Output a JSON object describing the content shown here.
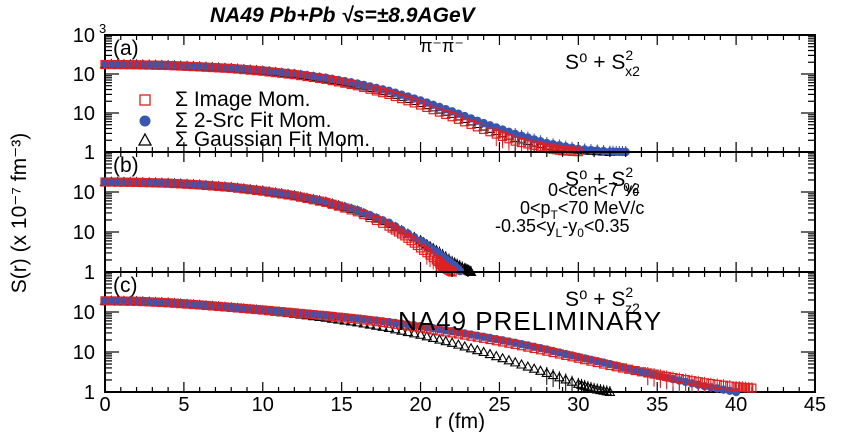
{
  "header": {
    "title": "NA49 Pb+Pb √s=±8.9AGeV",
    "particle_label": "π⁻π⁻",
    "y_axis_label": "S(r) (x 10⁻⁷ fm⁻³)",
    "x_axis_label": "r (fm)",
    "preliminary": "NA49 PRELIMINARY",
    "cuts": [
      "0<cen<7 %",
      "0<p_T<70 MeV/c",
      "-0.35<y_L-y_0<0.35"
    ]
  },
  "legend": [
    {
      "label": "Σ Image Mom.",
      "marker": "open-square",
      "color": "#e02020"
    },
    {
      "label": "Σ 2-Src Fit Mom.",
      "marker": "filled-circle",
      "color": "#3a55b0"
    },
    {
      "label": "Σ Gaussian Fit Mom.",
      "marker": "open-triangle",
      "color": "#000000"
    }
  ],
  "colors": {
    "image": "#e02020",
    "twosrc": "#3a55b0",
    "gauss": "#000000",
    "axis": "#000000"
  },
  "chart_data": [
    {
      "type": "scatter",
      "panel_label": "(a)",
      "component_label": {
        "base": "S⁰ + S",
        "sup": "2",
        "sub": "x2"
      },
      "xlim": [
        0,
        45
      ],
      "ylim": [
        1,
        1000
      ],
      "yscale": "log",
      "x_ticks": [
        "0",
        "5",
        "10",
        "15",
        "20",
        "25",
        "30",
        "35",
        "40",
        "45"
      ],
      "y_ticks": [
        {
          "v": 1,
          "t": "1"
        },
        {
          "v": 10,
          "t": "10"
        },
        {
          "v": 100,
          "t": "10"
        },
        {
          "v": 1000,
          "t": "10",
          "exp": "3"
        }
      ],
      "series": [
        {
          "name": "Σ Image Mom.",
          "marker": "open-square",
          "x": [
            0,
            2,
            4,
            6,
            8,
            10,
            12,
            14,
            16,
            18,
            20,
            22,
            24,
            26,
            28,
            29,
            30
          ],
          "y": [
            175,
            172,
            165,
            152,
            138,
            118,
            96,
            73,
            50,
            30,
            16,
            8,
            3.8,
            1.9,
            1.25,
            1.08,
            1.02
          ]
        },
        {
          "name": "Σ 2-Src Fit Mom.",
          "marker": "filled-circle",
          "x": [
            0,
            2,
            4,
            6,
            8,
            10,
            12,
            14,
            16,
            18,
            20,
            22,
            24,
            26,
            28,
            30,
            32,
            33
          ],
          "y": [
            180,
            177,
            170,
            158,
            143,
            125,
            103,
            80,
            57,
            37,
            21,
            11,
            5.5,
            2.9,
            1.7,
            1.2,
            1.02,
            1.0
          ]
        },
        {
          "name": "Σ Gaussian Fit Mom.",
          "marker": "open-triangle",
          "x": [
            0,
            2,
            4,
            6,
            8,
            10,
            12,
            14,
            16,
            18,
            20,
            22,
            24,
            26,
            28,
            30,
            32
          ],
          "y": [
            178,
            175,
            168,
            155,
            140,
            121,
            99,
            76,
            53,
            33,
            18,
            9.5,
            4.5,
            2.3,
            1.45,
            1.12,
            1.0
          ]
        }
      ]
    },
    {
      "type": "scatter",
      "panel_label": "(b)",
      "component_label": {
        "base": "S⁰ + S",
        "sup": "2",
        "sub": "y2"
      },
      "xlim": [
        0,
        45
      ],
      "ylim": [
        1,
        1000
      ],
      "yscale": "log",
      "x_ticks": [
        "0",
        "5",
        "10",
        "15",
        "20",
        "25",
        "30",
        "35",
        "40",
        "45"
      ],
      "y_ticks": [
        {
          "v": 1,
          "t": "1"
        },
        {
          "v": 10,
          "t": "10"
        },
        {
          "v": 100,
          "t": "10"
        }
      ],
      "series": [
        {
          "name": "Σ Image Mom.",
          "marker": "open-square",
          "x": [
            0,
            2,
            4,
            6,
            8,
            10,
            12,
            14,
            16,
            18,
            19,
            20,
            21,
            21.5,
            22
          ],
          "y": [
            178,
            174,
            166,
            150,
            130,
            105,
            80,
            55,
            32,
            14,
            8,
            4,
            2,
            1.3,
            1.0
          ]
        },
        {
          "name": "Σ 2-Src Fit Mom.",
          "marker": "filled-circle",
          "x": [
            0,
            2,
            4,
            6,
            8,
            10,
            12,
            14,
            16,
            18,
            20,
            21,
            22,
            22.5
          ],
          "y": [
            182,
            178,
            170,
            155,
            135,
            110,
            84,
            58,
            35,
            17,
            6,
            3.2,
            1.6,
            1.05
          ]
        },
        {
          "name": "Σ Gaussian Fit Mom.",
          "marker": "open-triangle",
          "x": [
            0,
            2,
            4,
            6,
            8,
            10,
            12,
            14,
            16,
            18,
            20,
            21,
            22,
            22.8,
            23.2
          ],
          "y": [
            180,
            176,
            168,
            152,
            132,
            108,
            82,
            57,
            34,
            16,
            6.2,
            3.5,
            1.8,
            1.2,
            1.0
          ]
        }
      ]
    },
    {
      "type": "scatter",
      "panel_label": "(c)",
      "component_label": {
        "base": "S⁰ + S",
        "sup": "2",
        "sub": "z2"
      },
      "xlim": [
        0,
        45
      ],
      "ylim": [
        1,
        1000
      ],
      "yscale": "log",
      "x_ticks": [
        "0",
        "5",
        "10",
        "15",
        "20",
        "25",
        "30",
        "35",
        "40",
        "45"
      ],
      "y_ticks": [
        {
          "v": 1,
          "t": "1"
        },
        {
          "v": 10,
          "t": "10"
        },
        {
          "v": 100,
          "t": "10"
        }
      ],
      "series": [
        {
          "name": "Σ Image Mom.",
          "marker": "open-square",
          "x": [
            0,
            2,
            4,
            6,
            8,
            10,
            12,
            14,
            16,
            18,
            20,
            22,
            24,
            26,
            28,
            30,
            32,
            34,
            36,
            38,
            40,
            41
          ],
          "y": [
            190,
            185,
            170,
            150,
            130,
            112,
            95,
            80,
            66,
            52,
            40,
            30,
            22,
            15.5,
            10.5,
            7,
            4.6,
            3.2,
            2.3,
            1.7,
            1.35,
            1.25
          ]
        },
        {
          "name": "Σ 2-Src Fit Mom.",
          "marker": "filled-circle",
          "x": [
            0,
            2,
            4,
            6,
            8,
            10,
            12,
            14,
            16,
            18,
            20,
            22,
            24,
            26,
            28,
            30,
            32,
            34,
            36,
            38,
            40
          ],
          "y": [
            195,
            188,
            172,
            152,
            133,
            115,
            98,
            83,
            69,
            56,
            44,
            33,
            24,
            17,
            11.5,
            7.5,
            5,
            3.2,
            2.1,
            1.4,
            1.0
          ]
        },
        {
          "name": "Σ Gaussian Fit Mom.",
          "marker": "open-triangle",
          "x": [
            0,
            2,
            4,
            6,
            8,
            10,
            12,
            14,
            16,
            18,
            20,
            22,
            24,
            26,
            28,
            30,
            31,
            32
          ],
          "y": [
            192,
            186,
            171,
            150,
            130,
            110,
            90,
            72,
            55,
            40,
            27,
            17,
            10,
            5.5,
            3,
            1.6,
            1.2,
            1.0
          ]
        }
      ]
    }
  ]
}
